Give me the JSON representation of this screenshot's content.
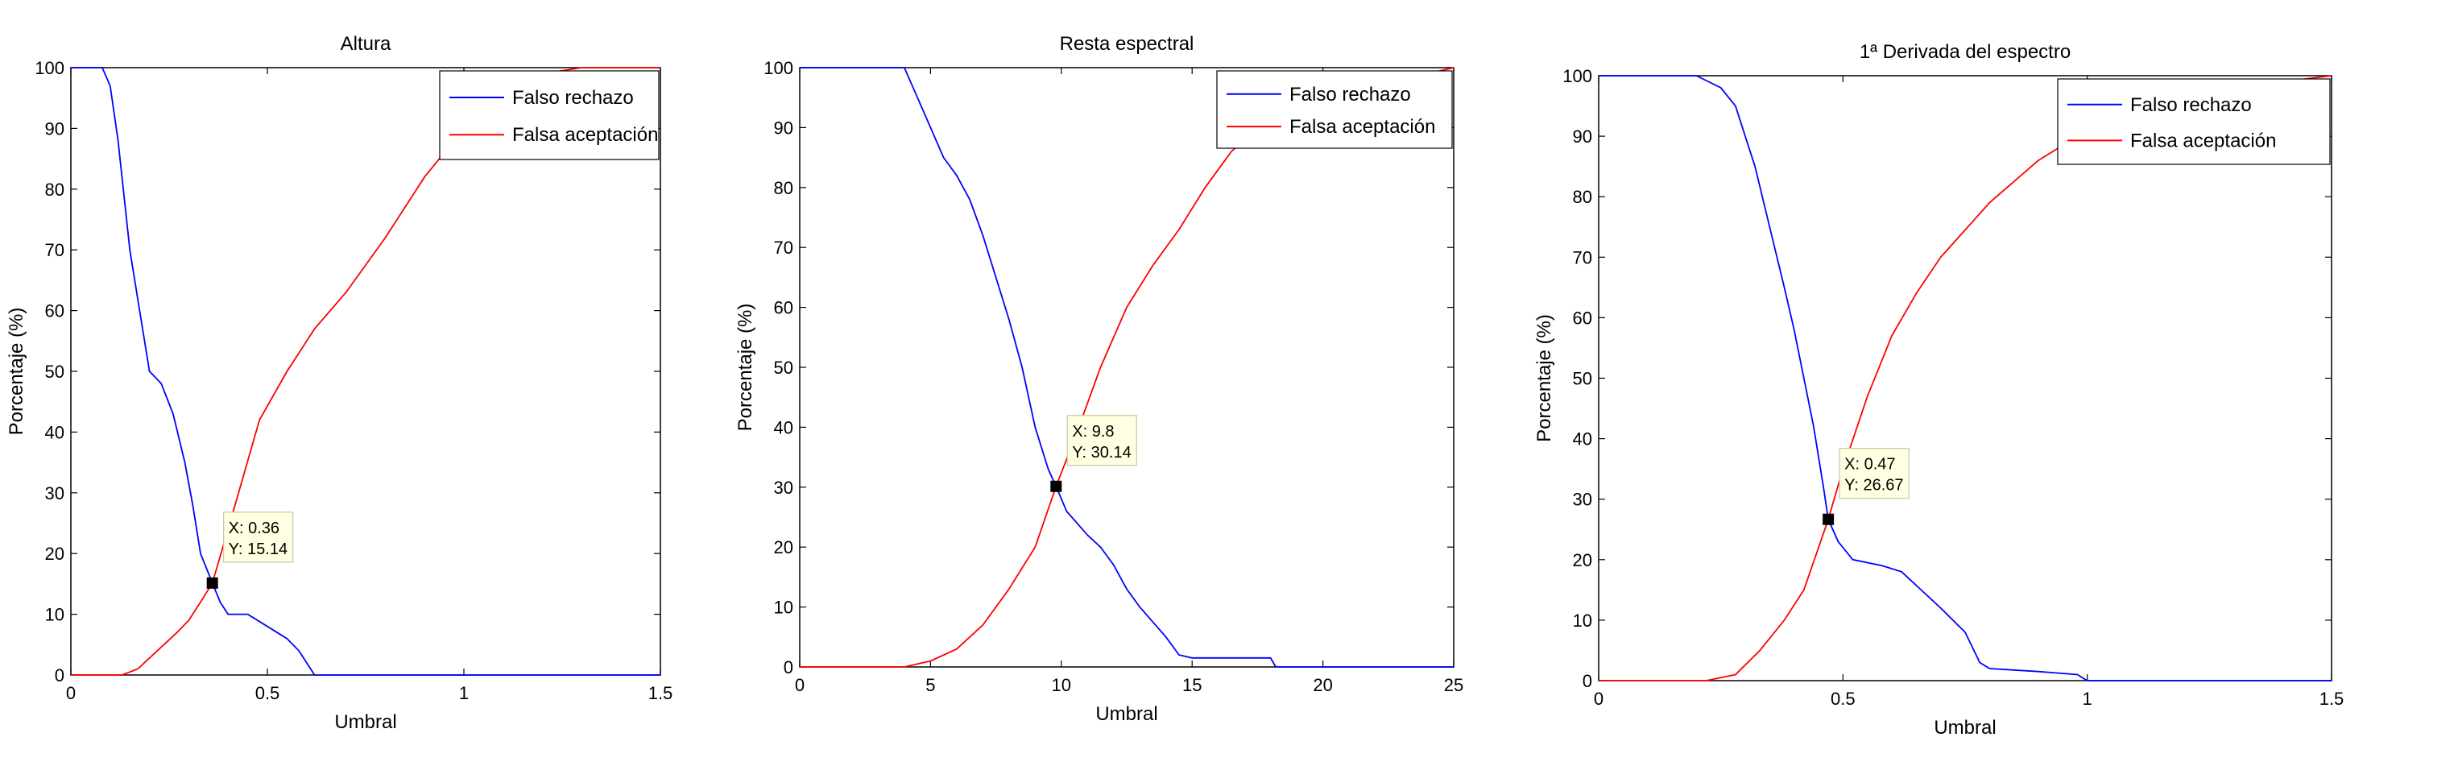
{
  "chart_data": [
    {
      "type": "line",
      "title": "Altura",
      "xlabel": "Umbral",
      "ylabel": "Porcentaje (%)",
      "xlim": [
        0,
        1.5
      ],
      "ylim": [
        0,
        100
      ],
      "xticks": [
        0,
        0.5,
        1,
        1.5
      ],
      "yticks": [
        0,
        10,
        20,
        30,
        40,
        50,
        60,
        70,
        80,
        90,
        100
      ],
      "grid": false,
      "legend_position": "top-right",
      "series": [
        {
          "name": "Falso rechazo",
          "color": "#0000ff",
          "points": [
            [
              0,
              100
            ],
            [
              0.08,
              100
            ],
            [
              0.1,
              97
            ],
            [
              0.12,
              88
            ],
            [
              0.15,
              70
            ],
            [
              0.18,
              58
            ],
            [
              0.2,
              50
            ],
            [
              0.23,
              48
            ],
            [
              0.26,
              43
            ],
            [
              0.29,
              35
            ],
            [
              0.31,
              28
            ],
            [
              0.33,
              20
            ],
            [
              0.36,
              15.14
            ],
            [
              0.38,
              12
            ],
            [
              0.4,
              10
            ],
            [
              0.45,
              10
            ],
            [
              0.5,
              8
            ],
            [
              0.55,
              6
            ],
            [
              0.58,
              4
            ],
            [
              0.6,
              2
            ],
            [
              0.62,
              0
            ],
            [
              0.8,
              0
            ],
            [
              1.0,
              0
            ],
            [
              1.5,
              0
            ]
          ]
        },
        {
          "name": "Falsa aceptación",
          "color": "#ff0000",
          "points": [
            [
              0,
              0
            ],
            [
              0.13,
              0
            ],
            [
              0.17,
              1
            ],
            [
              0.22,
              4
            ],
            [
              0.27,
              7
            ],
            [
              0.3,
              9
            ],
            [
              0.33,
              12
            ],
            [
              0.36,
              15.14
            ],
            [
              0.4,
              24
            ],
            [
              0.44,
              33
            ],
            [
              0.48,
              42
            ],
            [
              0.55,
              50
            ],
            [
              0.62,
              57
            ],
            [
              0.7,
              63
            ],
            [
              0.8,
              72
            ],
            [
              0.9,
              82
            ],
            [
              1.0,
              90
            ],
            [
              1.1,
              96
            ],
            [
              1.2,
              99
            ],
            [
              1.3,
              100
            ],
            [
              1.5,
              100
            ]
          ]
        }
      ],
      "datatip": {
        "x_label": "X: 0.36",
        "y_label": "Y: 15.14",
        "x": 0.36,
        "y": 15.14
      }
    },
    {
      "type": "line",
      "title": "Resta espectral",
      "xlabel": "Umbral",
      "ylabel": "Porcentaje (%)",
      "xlim": [
        0,
        25
      ],
      "ylim": [
        0,
        100
      ],
      "xticks": [
        0,
        5,
        10,
        15,
        20,
        25
      ],
      "yticks": [
        0,
        10,
        20,
        30,
        40,
        50,
        60,
        70,
        80,
        90,
        100
      ],
      "grid": false,
      "legend_position": "top-right",
      "series": [
        {
          "name": "Falso rechazo",
          "color": "#0000ff",
          "points": [
            [
              0,
              100
            ],
            [
              4,
              100
            ],
            [
              4.5,
              95
            ],
            [
              5,
              90
            ],
            [
              5.5,
              85
            ],
            [
              6,
              82
            ],
            [
              6.5,
              78
            ],
            [
              7,
              72
            ],
            [
              7.5,
              65
            ],
            [
              8,
              58
            ],
            [
              8.5,
              50
            ],
            [
              9,
              40
            ],
            [
              9.5,
              33
            ],
            [
              9.8,
              30.14
            ],
            [
              10.2,
              26
            ],
            [
              11,
              22
            ],
            [
              11.5,
              20
            ],
            [
              12,
              17
            ],
            [
              12.5,
              13
            ],
            [
              13,
              10
            ],
            [
              14,
              5
            ],
            [
              14.5,
              2
            ],
            [
              15,
              1.5
            ],
            [
              18,
              1.5
            ],
            [
              18.2,
              0
            ],
            [
              25,
              0
            ]
          ]
        },
        {
          "name": "Falsa aceptación",
          "color": "#ff0000",
          "points": [
            [
              0,
              0
            ],
            [
              4,
              0
            ],
            [
              5,
              1
            ],
            [
              6,
              3
            ],
            [
              7,
              7
            ],
            [
              8,
              13
            ],
            [
              9,
              20
            ],
            [
              9.8,
              30.14
            ],
            [
              10.5,
              38
            ],
            [
              11.5,
              50
            ],
            [
              12.5,
              60
            ],
            [
              13.5,
              67
            ],
            [
              14.5,
              73
            ],
            [
              15.5,
              80
            ],
            [
              16.5,
              86
            ],
            [
              17.5,
              90
            ],
            [
              18.5,
              93
            ],
            [
              20,
              95
            ],
            [
              22,
              97
            ],
            [
              24,
              99
            ],
            [
              25,
              100
            ]
          ]
        }
      ],
      "datatip": {
        "x_label": "X: 9.8",
        "y_label": "Y: 30.14",
        "x": 9.8,
        "y": 30.14
      }
    },
    {
      "type": "line",
      "title": "1ª Derivada del espectro",
      "xlabel": "Umbral",
      "ylabel": "Porcentaje (%)",
      "xlim": [
        0,
        1.5
      ],
      "ylim": [
        0,
        100
      ],
      "xticks": [
        0,
        0.5,
        1,
        1.5
      ],
      "yticks": [
        0,
        10,
        20,
        30,
        40,
        50,
        60,
        70,
        80,
        90,
        100
      ],
      "grid": false,
      "legend_position": "top-right",
      "series": [
        {
          "name": "Falso rechazo",
          "color": "#0000ff",
          "points": [
            [
              0,
              100
            ],
            [
              0.2,
              100
            ],
            [
              0.25,
              98
            ],
            [
              0.28,
              95
            ],
            [
              0.3,
              90
            ],
            [
              0.32,
              85
            ],
            [
              0.35,
              75
            ],
            [
              0.38,
              65
            ],
            [
              0.4,
              58
            ],
            [
              0.42,
              50
            ],
            [
              0.44,
              42
            ],
            [
              0.46,
              32
            ],
            [
              0.47,
              26.67
            ],
            [
              0.49,
              23
            ],
            [
              0.52,
              20
            ],
            [
              0.58,
              19
            ],
            [
              0.62,
              18
            ],
            [
              0.66,
              15
            ],
            [
              0.7,
              12
            ],
            [
              0.75,
              8
            ],
            [
              0.78,
              3
            ],
            [
              0.8,
              2
            ],
            [
              0.9,
              1.5
            ],
            [
              0.98,
              1
            ],
            [
              1.0,
              0
            ],
            [
              1.5,
              0
            ]
          ]
        },
        {
          "name": "Falsa aceptación",
          "color": "#ff0000",
          "points": [
            [
              0,
              0
            ],
            [
              0.22,
              0
            ],
            [
              0.28,
              1
            ],
            [
              0.33,
              5
            ],
            [
              0.38,
              10
            ],
            [
              0.42,
              15
            ],
            [
              0.45,
              22
            ],
            [
              0.47,
              26.67
            ],
            [
              0.5,
              35
            ],
            [
              0.55,
              47
            ],
            [
              0.6,
              57
            ],
            [
              0.65,
              64
            ],
            [
              0.7,
              70
            ],
            [
              0.8,
              79
            ],
            [
              0.9,
              86
            ],
            [
              1.0,
              91
            ],
            [
              1.1,
              95
            ],
            [
              1.2,
              97
            ],
            [
              1.3,
              98
            ],
            [
              1.4,
              99
            ],
            [
              1.5,
              100
            ]
          ]
        }
      ],
      "datatip": {
        "x_label": "X: 0.47",
        "y_label": "Y: 26.67",
        "x": 0.47,
        "y": 26.67
      }
    }
  ]
}
